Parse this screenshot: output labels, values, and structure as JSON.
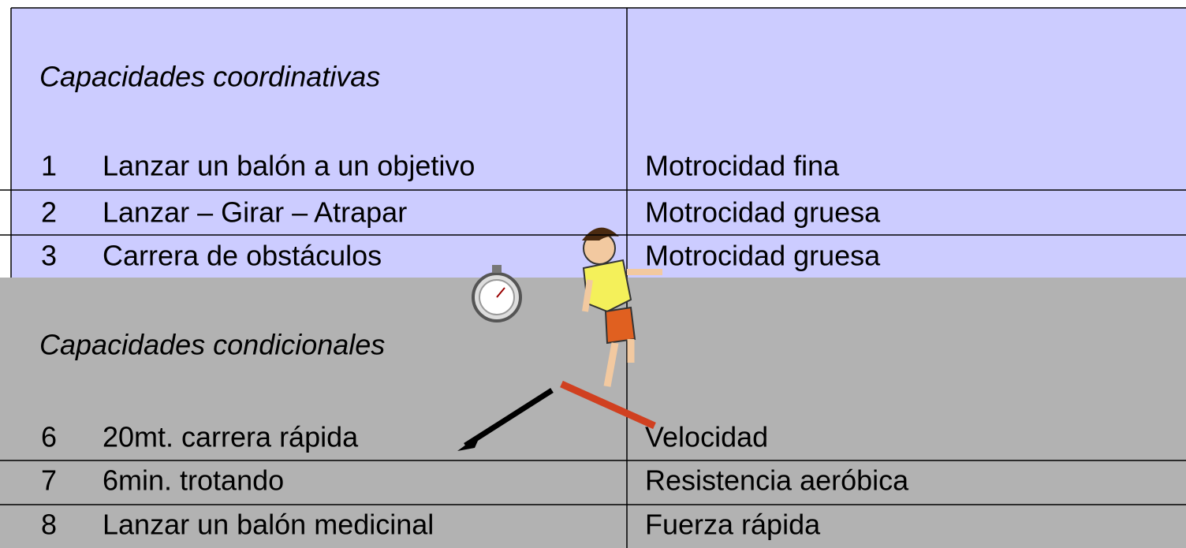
{
  "sections": [
    {
      "title": "Capacidades coordinativas",
      "rows": [
        {
          "number": 1,
          "label": "Lanzar un balón a un objetivo",
          "category": "Motrocidad fina"
        },
        {
          "number": 2,
          "label": "Lanzar – Girar – Atrapar",
          "category": "Motrocidad gruesa"
        },
        {
          "number": 3,
          "label": "Carrera de obstáculos",
          "category": "Motrocidad gruesa"
        }
      ]
    },
    {
      "title": "Capacidades condicionales",
      "rows": [
        {
          "number": 6,
          "label": "20mt. carrera rápida",
          "category": "Velocidad"
        },
        {
          "number": 7,
          "label": "6min. trotando",
          "category": "Resistencia aeróbica"
        },
        {
          "number": 8,
          "label": "Lanzar un balón medicinal",
          "category": "Fuerza rápida"
        }
      ]
    }
  ]
}
